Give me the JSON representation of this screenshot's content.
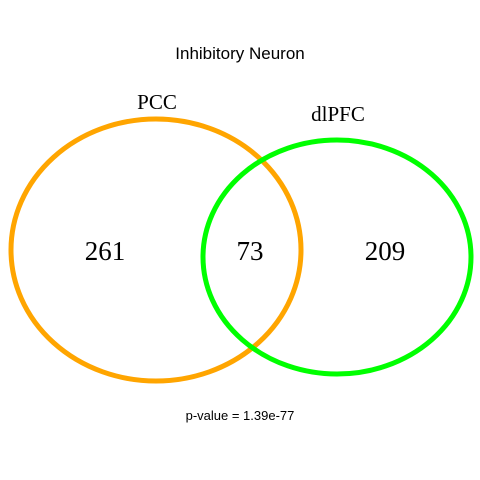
{
  "title": "Inhibitory Neuron",
  "sets": [
    {
      "name": "PCC",
      "color": "#FFA500"
    },
    {
      "name": "dlPFC",
      "color": "#00FF00"
    }
  ],
  "counts": {
    "left_only": "261",
    "overlap": "73",
    "right_only": "209"
  },
  "footer": {
    "pvalue_text": "p-value = 1.39e-77"
  }
}
